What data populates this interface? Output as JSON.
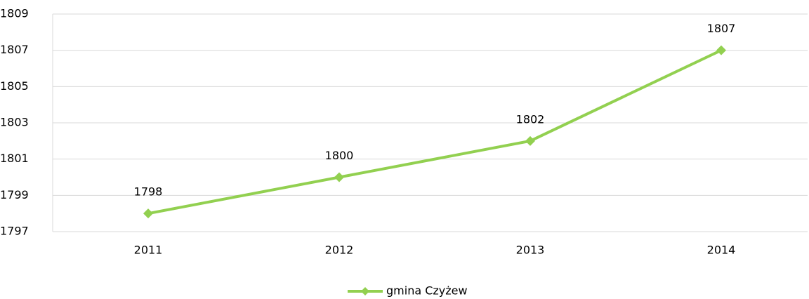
{
  "chart_data": {
    "type": "line",
    "categories": [
      "2011",
      "2012",
      "2013",
      "2014"
    ],
    "series": [
      {
        "name": "gmina Czyżew",
        "color": "#92d050",
        "values": [
          1798,
          1800,
          1802,
          1807
        ]
      }
    ],
    "ylim": [
      1797,
      1809
    ],
    "yticks": [
      1797,
      1799,
      1801,
      1803,
      1805,
      1807,
      1809
    ],
    "grid": true,
    "legend": "bottom"
  }
}
